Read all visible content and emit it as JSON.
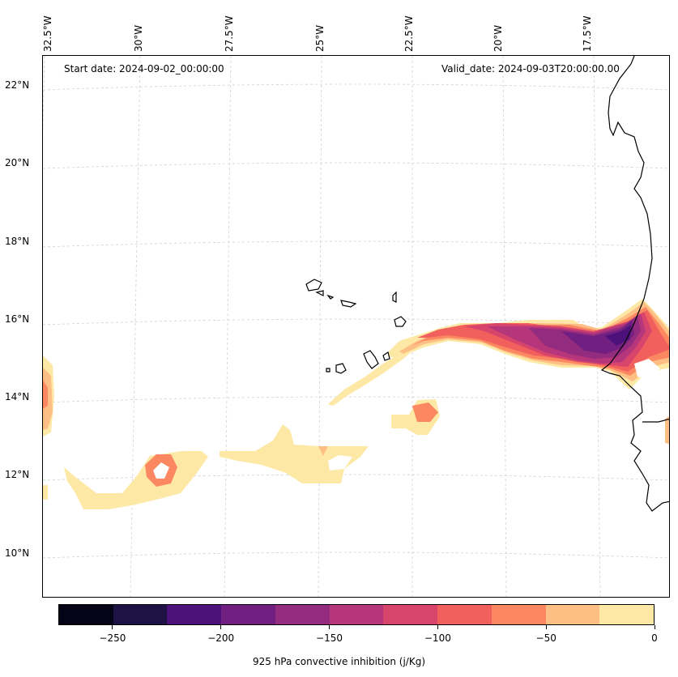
{
  "map": {
    "start_date_text": "Start date: 2024-09-02_00:00:00",
    "valid_date_text": "Valid_date: 2024-09-03T20:00:00.00",
    "longitude_labels": [
      "32.5°W",
      "30°W",
      "27.5°W",
      "25°W",
      "22.5°W",
      "20°W",
      "17.5°W"
    ],
    "latitude_labels": [
      "22°N",
      "20°N",
      "18°N",
      "16°N",
      "14°N",
      "12°N",
      "10°N"
    ],
    "extent": {
      "lon_min": -32.5,
      "lon_max": -15.5,
      "lat_min": 8.9,
      "lat_max": 22.8
    }
  },
  "colorbar": {
    "label": "925 hPa convective inhibition (j/Kg)",
    "tick_labels": [
      "−250",
      "−200",
      "−150",
      "−100",
      "−50",
      "0"
    ],
    "tick_values": [
      -250,
      -200,
      -150,
      -100,
      -50,
      0
    ],
    "range": [
      -275,
      0
    ],
    "levels": [
      -275,
      -250,
      -225,
      -200,
      -175,
      -150,
      -125,
      -100,
      -75,
      -50,
      -25,
      0
    ],
    "colors": [
      "#050416",
      "#1e1245",
      "#4c117b",
      "#711f81",
      "#932b7f",
      "#b5367a",
      "#d8456c",
      "#f1605d",
      "#fb8861",
      "#febf84",
      "#fde8a5"
    ]
  },
  "colors": {
    "coastline": "#000000",
    "gridline": "#d0d0d0"
  }
}
